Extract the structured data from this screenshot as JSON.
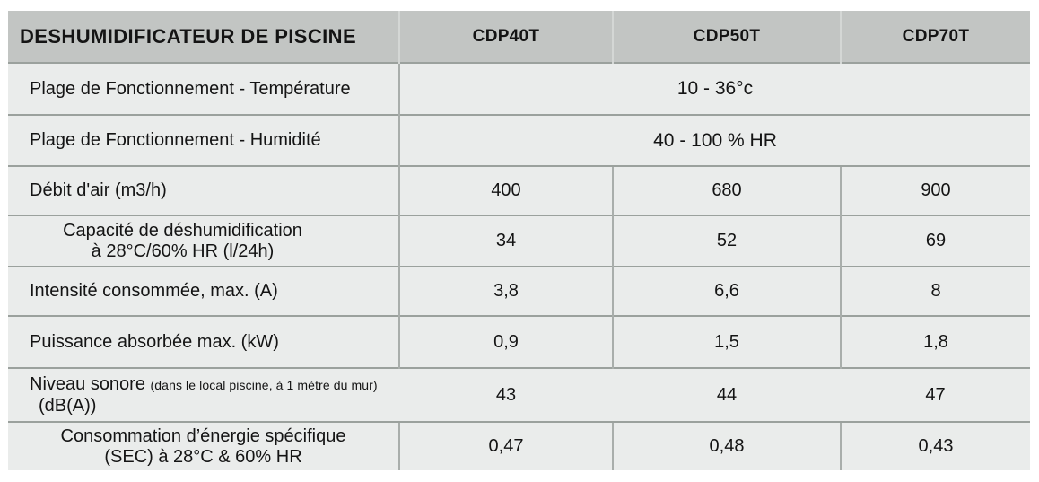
{
  "colors": {
    "page-bg": "#ffffff",
    "header-bg": "#c2c5c3",
    "cell-bg": "#eaeceb",
    "row-border": "#9ba19d",
    "col-border": "#a9aeab",
    "header-col-border": "#d4d7d5",
    "text": "#141414"
  },
  "table": {
    "title": "DESHUMIDIFICATEUR DE PISCINE",
    "columns": [
      "CDP40T",
      "CDP50T",
      "CDP70T"
    ],
    "rows": [
      {
        "label": "Plage de Fonctionnement - Température",
        "merged_value": "10 - 36°c"
      },
      {
        "label": "Plage de Fonctionnement - Humidité",
        "merged_value": "40 - 100 % HR"
      },
      {
        "label": "Débit d'air (m3/h)",
        "values": [
          "400",
          "680",
          "900"
        ]
      },
      {
        "label_line1": "Capacité de déshumidification",
        "label_line2": "à 28°C/60% HR (l/24h)",
        "values": [
          "34",
          "52",
          "69"
        ]
      },
      {
        "label": "Intensité consommée, max. (A)",
        "values": [
          "3,8",
          "6,6",
          "8"
        ]
      },
      {
        "label": "Puissance absorbée max. (kW)",
        "values": [
          "0,9",
          "1,5",
          "1,8"
        ]
      },
      {
        "label_main": "Niveau sonore",
        "label_note": "(dans le local piscine, à 1 mètre du mur)",
        "label_line2": "(dB(A))",
        "values": [
          "43",
          "44",
          "47"
        ]
      },
      {
        "label_line1": "Consommation d’énergie spécifique",
        "label_line2": "(SEC) à 28°C & 60% HR",
        "values": [
          "0,47",
          "0,48",
          "0,43"
        ]
      }
    ]
  }
}
